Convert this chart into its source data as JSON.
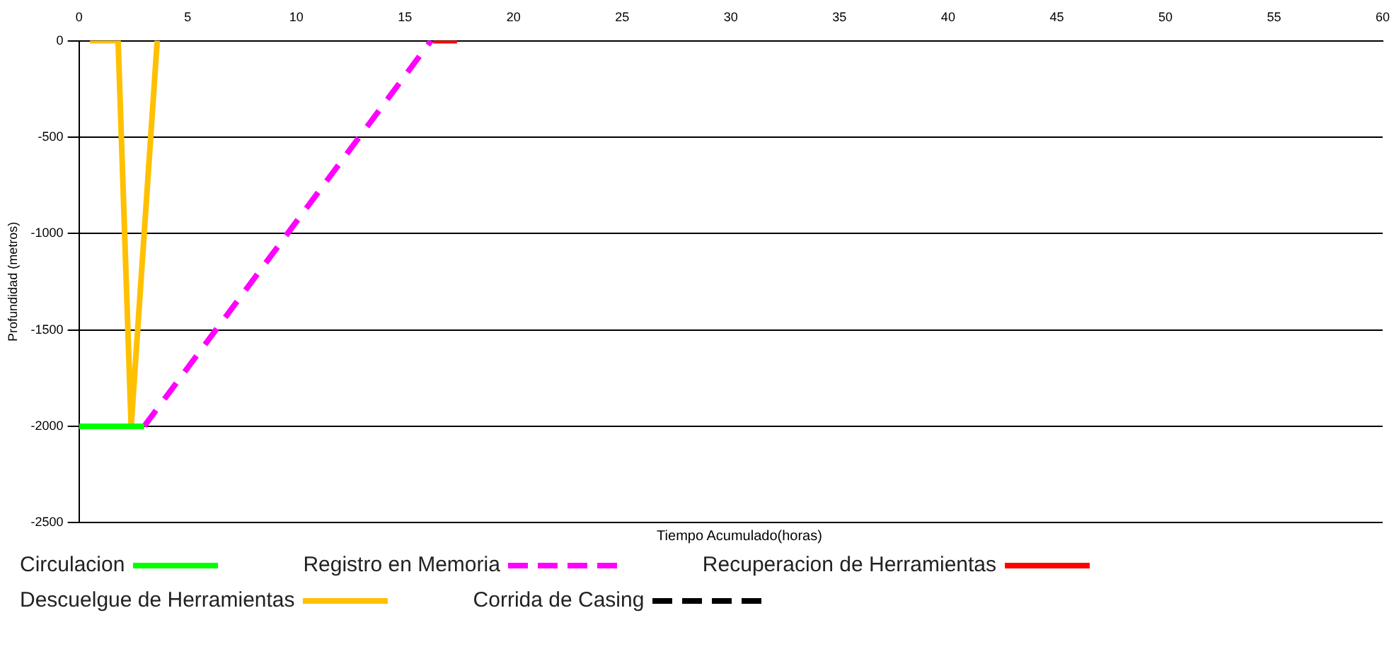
{
  "chart_data": {
    "type": "line",
    "xlabel": "Tiempo Acumulado(horas)",
    "ylabel": "Profundidad (metros)",
    "xlim": [
      0,
      60
    ],
    "xticks": [
      0,
      5,
      10,
      15,
      20,
      25,
      30,
      35,
      40,
      45,
      50,
      55,
      60
    ],
    "ylim": [
      -2500,
      0
    ],
    "yticks": [
      -2500,
      -2000,
      -1500,
      -1000,
      -500,
      0
    ],
    "grid": "y",
    "legend": "bottom",
    "marker": "none",
    "series": [
      {
        "name": "Circulacion",
        "color": "#00ff00",
        "x": [
          0,
          3.0
        ],
        "values": [
          -2000,
          -2000
        ]
      },
      {
        "name": "Registro en Memoria",
        "color": "#ff00ff",
        "line_style": "dashed",
        "x": [
          3.0,
          16.2
        ],
        "values": [
          -2000,
          0
        ]
      },
      {
        "name": "Recuperacion de Herramientas",
        "color": "#ff0000",
        "x": [
          16.3,
          17.4
        ],
        "values": [
          0,
          0
        ]
      },
      {
        "name": "Descuelgue de Herramientas",
        "color": "#ffc000",
        "x": [
          0.5,
          1.8,
          2.4,
          3.6
        ],
        "values": [
          0,
          0,
          -2000,
          0
        ]
      },
      {
        "name": "Corrida de Casing",
        "color": "#000000",
        "line_style": "dashed"
      }
    ]
  }
}
